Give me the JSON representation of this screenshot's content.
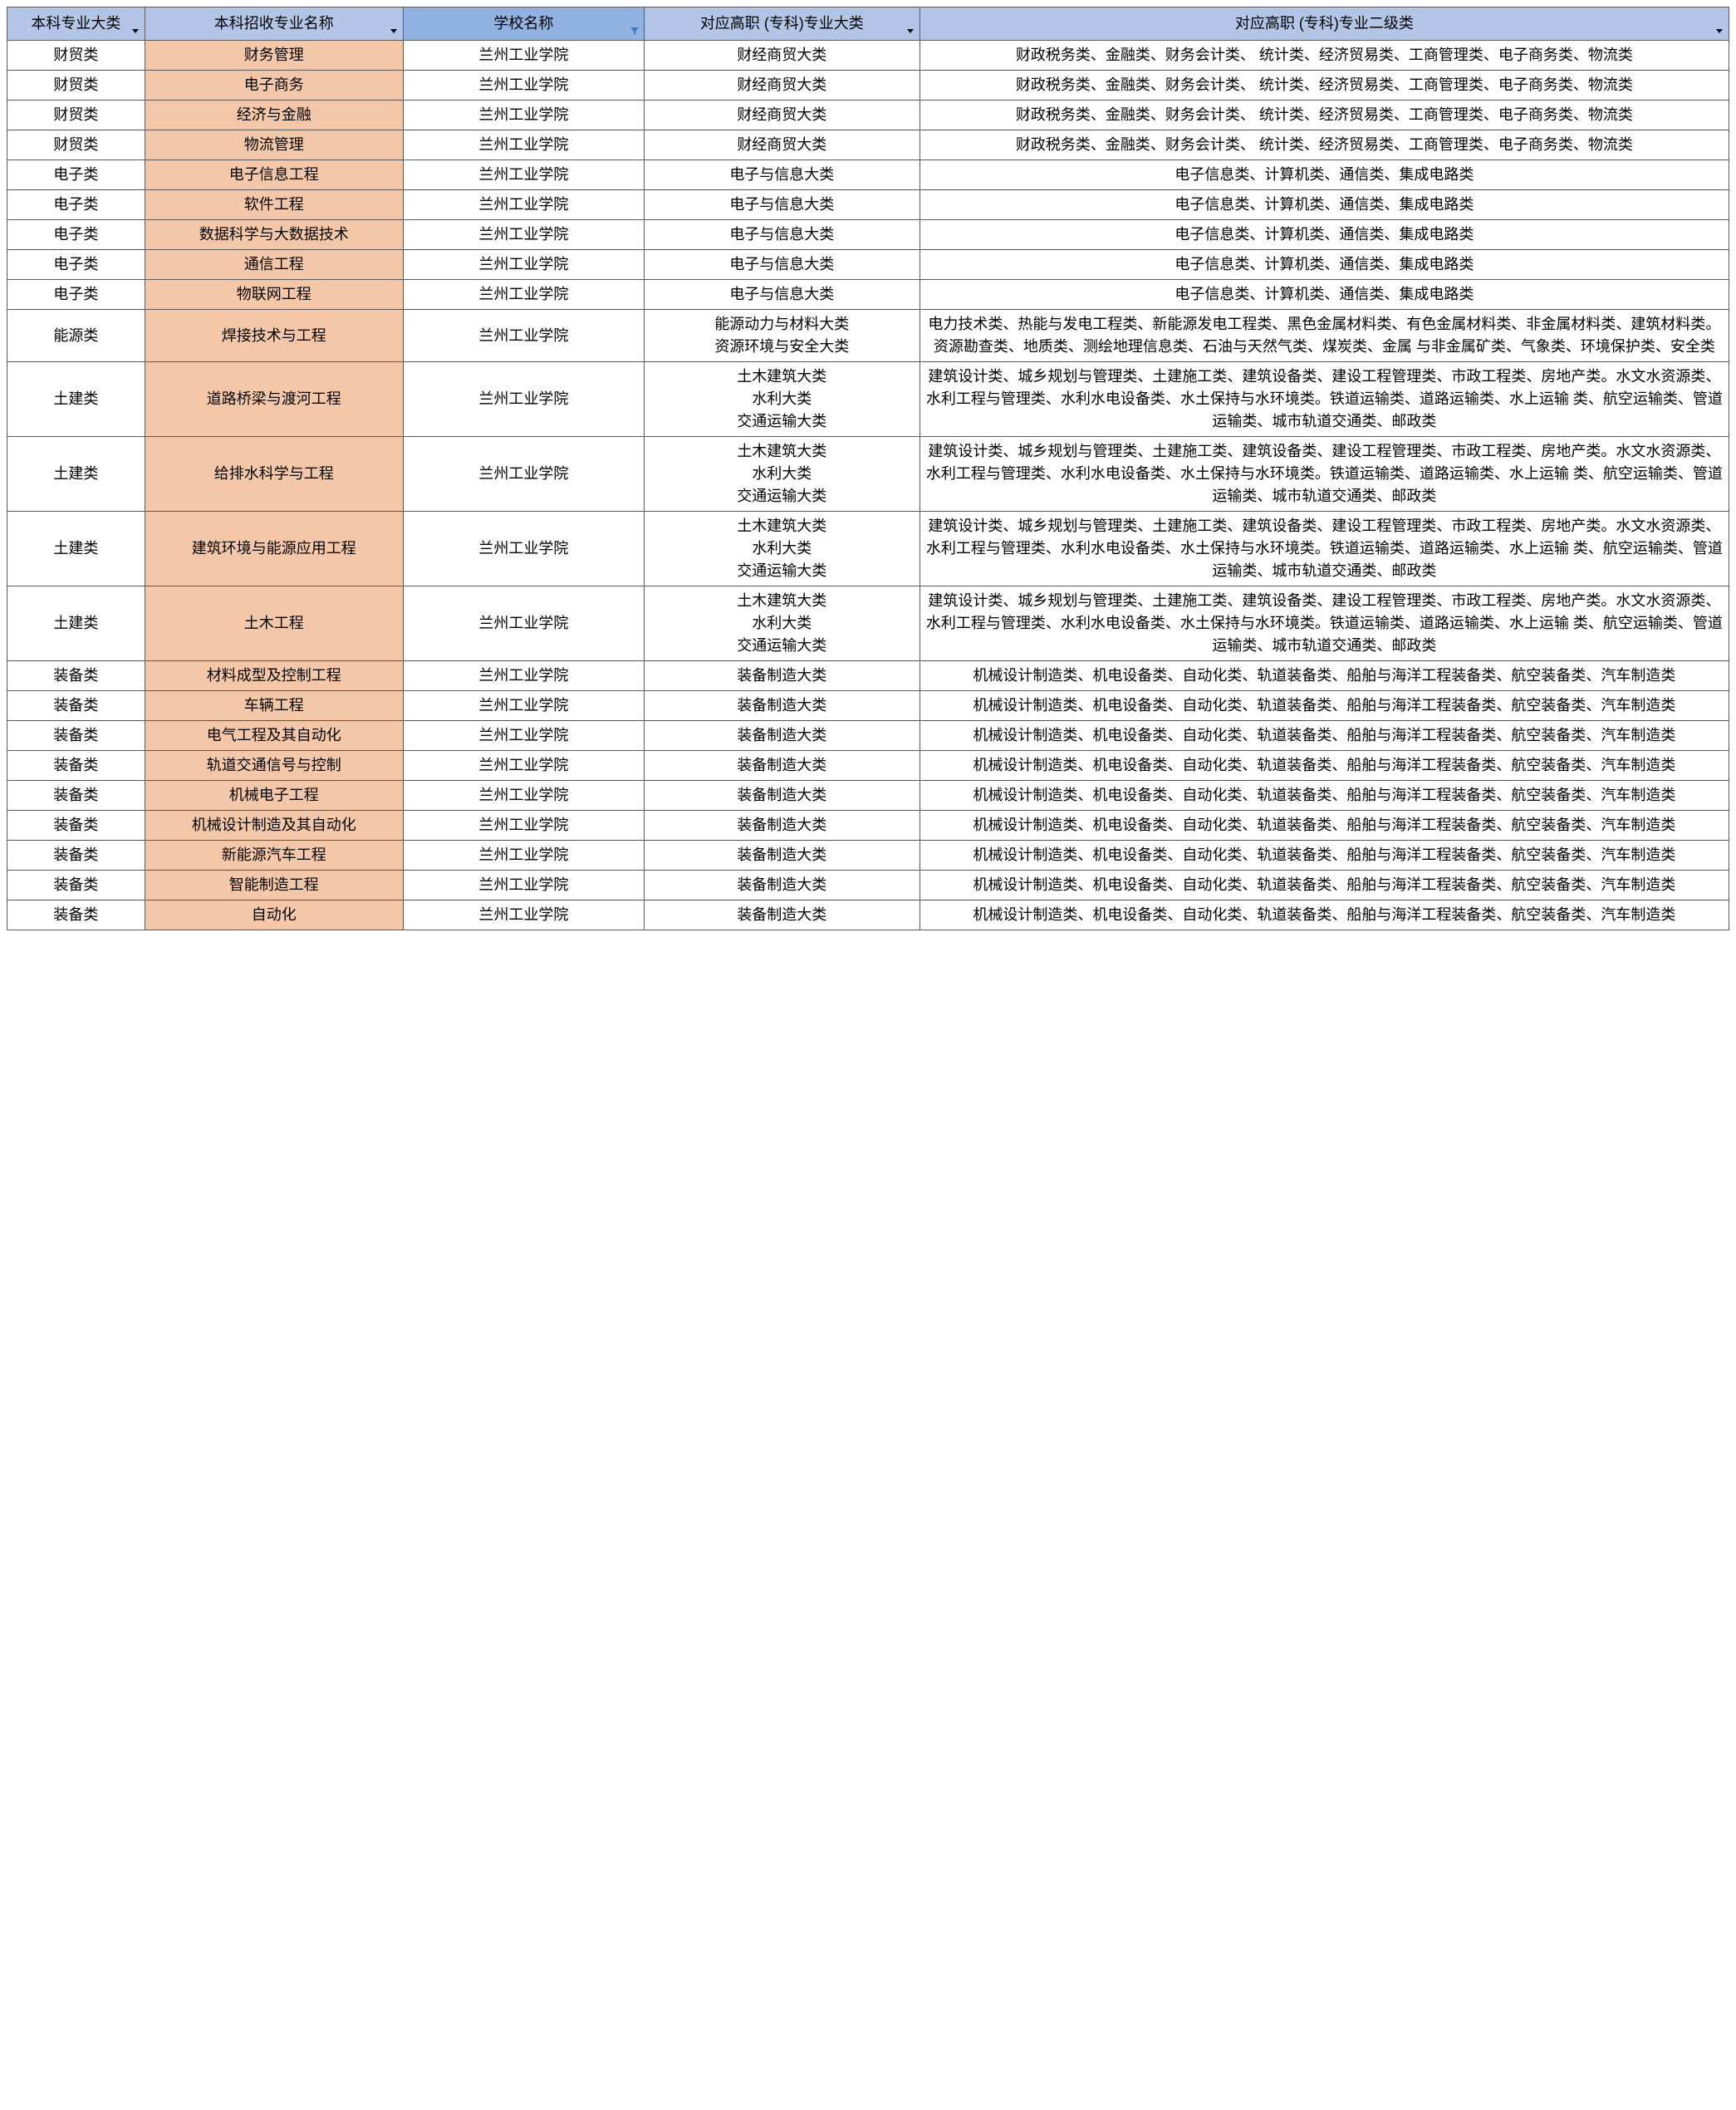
{
  "colors": {
    "header_bg_normal": "#b4c6e7",
    "header_bg_filtered": "#90b3e2",
    "highlight_bg": "#f4c7a8",
    "text": "#000000",
    "border": "#5a5a5a",
    "bg": "#ffffff",
    "filter_arrow": "#000000",
    "filter_funnel": "#3a78c9"
  },
  "columns": [
    {
      "label": "本科专业大类",
      "width_pct": 8,
      "filtered": false,
      "truncated": true
    },
    {
      "label": "本科招收专业名称",
      "width_pct": 15,
      "filtered": false,
      "truncated": false
    },
    {
      "label": "学校名称",
      "width_pct": 14,
      "filtered": true,
      "truncated": false
    },
    {
      "label": "对应高职 (专科)专业大类",
      "width_pct": 16,
      "filtered": false,
      "truncated": true
    },
    {
      "label": "对应高职 (专科)专业二级类",
      "width_pct": 47,
      "filtered": false,
      "truncated": false
    }
  ],
  "rows": [
    {
      "c1": "财贸类",
      "c2": "财务管理",
      "c3": "兰州工业学院",
      "c4": "财经商贸大类",
      "c5": "财政税务类、金融类、财务会计类、 统计类、经济贸易类、工商管理类、电子商务类、物流类"
    },
    {
      "c1": "财贸类",
      "c2": "电子商务",
      "c3": "兰州工业学院",
      "c4": "财经商贸大类",
      "c5": "财政税务类、金融类、财务会计类、 统计类、经济贸易类、工商管理类、电子商务类、物流类"
    },
    {
      "c1": "财贸类",
      "c2": "经济与金融",
      "c3": "兰州工业学院",
      "c4": "财经商贸大类",
      "c5": "财政税务类、金融类、财务会计类、 统计类、经济贸易类、工商管理类、电子商务类、物流类"
    },
    {
      "c1": "财贸类",
      "c2": "物流管理",
      "c3": "兰州工业学院",
      "c4": "财经商贸大类",
      "c5": "财政税务类、金融类、财务会计类、 统计类、经济贸易类、工商管理类、电子商务类、物流类"
    },
    {
      "c1": "电子类",
      "c2": "电子信息工程",
      "c3": "兰州工业学院",
      "c4": "电子与信息大类",
      "c5": "电子信息类、计算机类、通信类、集成电路类"
    },
    {
      "c1": "电子类",
      "c2": "软件工程",
      "c3": "兰州工业学院",
      "c4": "电子与信息大类",
      "c5": "电子信息类、计算机类、通信类、集成电路类"
    },
    {
      "c1": "电子类",
      "c2": "数据科学与大数据技术",
      "c3": "兰州工业学院",
      "c4": "电子与信息大类",
      "c5": "电子信息类、计算机类、通信类、集成电路类"
    },
    {
      "c1": "电子类",
      "c2": "通信工程",
      "c3": "兰州工业学院",
      "c4": "电子与信息大类",
      "c5": "电子信息类、计算机类、通信类、集成电路类"
    },
    {
      "c1": "电子类",
      "c2": "物联网工程",
      "c3": "兰州工业学院",
      "c4": "电子与信息大类",
      "c5": "电子信息类、计算机类、通信类、集成电路类"
    },
    {
      "c1": "能源类",
      "c2": "焊接技术与工程",
      "c3": "兰州工业学院",
      "c4": "能源动力与材料大类\n资源环境与安全大类",
      "c5": "电力技术类、热能与发电工程类、新能源发电工程类、黑色金属材料类、有色金属材料类、非金属材料类、建筑材料类。资源勘查类、地质类、测绘地理信息类、石油与天然气类、煤炭类、金属 与非金属矿类、气象类、环境保护类、安全类"
    },
    {
      "c1": "土建类",
      "c2": "道路桥梁与渡河工程",
      "c3": "兰州工业学院",
      "c4": "土木建筑大类\n水利大类\n交通运输大类",
      "c5": "建筑设计类、城乡规划与管理类、土建施工类、建筑设备类、建设工程管理类、市政工程类、房地产类。水文水资源类、水利工程与管理类、水利水电设备类、水土保持与水环境类。铁道运输类、道路运输类、水上运输 类、航空运输类、管道运输类、城市轨道交通类、邮政类"
    },
    {
      "c1": "土建类",
      "c2": "给排水科学与工程",
      "c3": "兰州工业学院",
      "c4": "土木建筑大类\n水利大类\n交通运输大类",
      "c5": "建筑设计类、城乡规划与管理类、土建施工类、建筑设备类、建设工程管理类、市政工程类、房地产类。水文水资源类、水利工程与管理类、水利水电设备类、水土保持与水环境类。铁道运输类、道路运输类、水上运输 类、航空运输类、管道运输类、城市轨道交通类、邮政类"
    },
    {
      "c1": "土建类",
      "c2": "建筑环境与能源应用工程",
      "c3": "兰州工业学院",
      "c4": "土木建筑大类\n水利大类\n交通运输大类",
      "c5": "建筑设计类、城乡规划与管理类、土建施工类、建筑设备类、建设工程管理类、市政工程类、房地产类。水文水资源类、水利工程与管理类、水利水电设备类、水土保持与水环境类。铁道运输类、道路运输类、水上运输 类、航空运输类、管道运输类、城市轨道交通类、邮政类"
    },
    {
      "c1": "土建类",
      "c2": "土木工程",
      "c3": "兰州工业学院",
      "c4": "土木建筑大类\n水利大类\n交通运输大类",
      "c5": "建筑设计类、城乡规划与管理类、土建施工类、建筑设备类、建设工程管理类、市政工程类、房地产类。水文水资源类、水利工程与管理类、水利水电设备类、水土保持与水环境类。铁道运输类、道路运输类、水上运输 类、航空运输类、管道运输类、城市轨道交通类、邮政类"
    },
    {
      "c1": "装备类",
      "c2": "材料成型及控制工程",
      "c3": "兰州工业学院",
      "c4": "装备制造大类",
      "c5": "机械设计制造类、机电设备类、自动化类、轨道装备类、船舶与海洋工程装备类、航空装备类、汽车制造类"
    },
    {
      "c1": "装备类",
      "c2": "车辆工程",
      "c3": "兰州工业学院",
      "c4": "装备制造大类",
      "c5": "机械设计制造类、机电设备类、自动化类、轨道装备类、船舶与海洋工程装备类、航空装备类、汽车制造类"
    },
    {
      "c1": "装备类",
      "c2": "电气工程及其自动化",
      "c3": "兰州工业学院",
      "c4": "装备制造大类",
      "c5": "机械设计制造类、机电设备类、自动化类、轨道装备类、船舶与海洋工程装备类、航空装备类、汽车制造类"
    },
    {
      "c1": "装备类",
      "c2": "轨道交通信号与控制",
      "c3": "兰州工业学院",
      "c4": "装备制造大类",
      "c5": "机械设计制造类、机电设备类、自动化类、轨道装备类、船舶与海洋工程装备类、航空装备类、汽车制造类"
    },
    {
      "c1": "装备类",
      "c2": "机械电子工程",
      "c3": "兰州工业学院",
      "c4": "装备制造大类",
      "c5": "机械设计制造类、机电设备类、自动化类、轨道装备类、船舶与海洋工程装备类、航空装备类、汽车制造类"
    },
    {
      "c1": "装备类",
      "c2": "机械设计制造及其自动化",
      "c3": "兰州工业学院",
      "c4": "装备制造大类",
      "c5": "机械设计制造类、机电设备类、自动化类、轨道装备类、船舶与海洋工程装备类、航空装备类、汽车制造类"
    },
    {
      "c1": "装备类",
      "c2": "新能源汽车工程",
      "c3": "兰州工业学院",
      "c4": "装备制造大类",
      "c5": "机械设计制造类、机电设备类、自动化类、轨道装备类、船舶与海洋工程装备类、航空装备类、汽车制造类"
    },
    {
      "c1": "装备类",
      "c2": "智能制造工程",
      "c3": "兰州工业学院",
      "c4": "装备制造大类",
      "c5": "机械设计制造类、机电设备类、自动化类、轨道装备类、船舶与海洋工程装备类、航空装备类、汽车制造类"
    },
    {
      "c1": "装备类",
      "c2": "自动化",
      "c3": "兰州工业学院",
      "c4": "装备制造大类",
      "c5": "机械设计制造类、机电设备类、自动化类、轨道装备类、船舶与海洋工程装备类、航空装备类、汽车制造类"
    }
  ]
}
